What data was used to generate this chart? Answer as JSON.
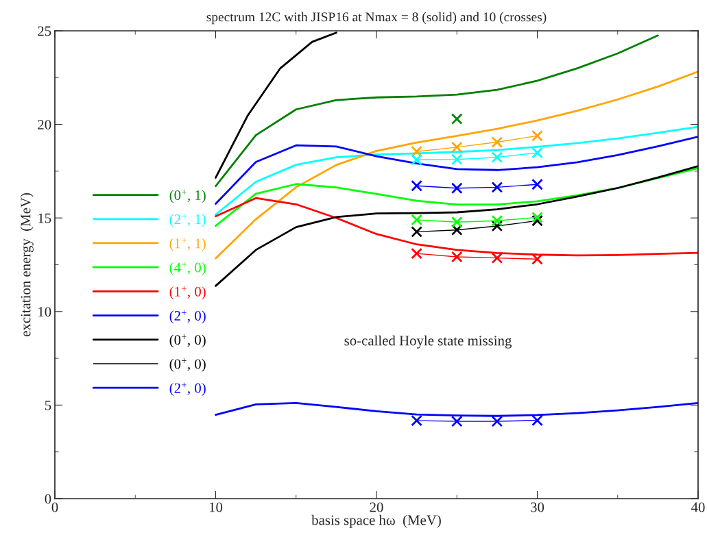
{
  "chart_data": {
    "type": "line",
    "title": "spectrum 12C with JISP16 at Nmax = 8 (solid) and 10 (crosses)",
    "xlabel": "basis space hω  (MeV)",
    "ylabel": "excitation energy  (MeV)",
    "xlim": [
      0,
      40
    ],
    "ylim": [
      0,
      25
    ],
    "xticks": [
      0,
      10,
      20,
      30,
      40
    ],
    "yticks": [
      0,
      5,
      10,
      15,
      20,
      25
    ],
    "grid": false,
    "legend": "left",
    "annotations": [
      "so-called Hoyle state missing"
    ],
    "series": [
      {
        "name": "(0$^{+}$, 1)",
        "color": "#008000",
        "x": [
          10,
          12.5,
          15,
          17.5,
          20,
          22.5,
          25,
          27.5,
          30,
          32.5,
          35,
          37.5
        ],
        "values": [
          16.7,
          19.42,
          20.8,
          21.3,
          21.44,
          21.49,
          21.59,
          21.85,
          22.33,
          23.0,
          23.79,
          24.75
        ]
      },
      {
        "name": "(2$^{+}$, 1)",
        "color": "#00ffff",
        "x": [
          10,
          12.5,
          15,
          17.5,
          20,
          22.5,
          25,
          27.5,
          30,
          32.5,
          35,
          37.5,
          40
        ],
        "values": [
          15.18,
          16.93,
          17.84,
          18.24,
          18.39,
          18.45,
          18.53,
          18.63,
          18.8,
          19.0,
          19.25,
          19.55,
          19.87
        ]
      },
      {
        "name": "(1$^{+}$, 1)",
        "color": "#ffa500",
        "x": [
          10,
          12.5,
          15,
          17.5,
          20,
          22.5,
          25,
          27.5,
          30,
          32.5,
          35,
          37.5,
          40
        ],
        "values": [
          12.84,
          14.93,
          16.64,
          17.83,
          18.58,
          19.03,
          19.39,
          19.76,
          20.21,
          20.73,
          21.33,
          22.02,
          22.82
        ]
      },
      {
        "name": "(4$^{+}$, 0)",
        "color": "#00ff00",
        "x": [
          10,
          12.5,
          15,
          17.5,
          20,
          22.5,
          25,
          27.5,
          30,
          32.5,
          35,
          37.5,
          40
        ],
        "values": [
          14.58,
          16.29,
          16.81,
          16.63,
          16.28,
          15.92,
          15.72,
          15.72,
          15.89,
          16.21,
          16.6,
          17.13,
          17.66
        ]
      },
      {
        "name": "(1$^{+}$, 0)",
        "color": "#ff0000",
        "x": [
          10,
          12.5,
          15,
          17.5,
          20,
          22.5,
          25,
          27.5,
          30,
          32.5,
          35,
          37.5,
          40
        ],
        "values": [
          15.09,
          16.06,
          15.73,
          15.0,
          14.14,
          13.59,
          13.29,
          13.13,
          13.04,
          13.0,
          13.02,
          13.08,
          13.14
        ]
      },
      {
        "name": "(2$^{+}$, 0)",
        "color": "#0000ff",
        "x": [
          10,
          12.5,
          15,
          17.5,
          20,
          22.5,
          25,
          27.5,
          30,
          32.5,
          35,
          37.5,
          40
        ],
        "values": [
          15.76,
          17.99,
          18.88,
          18.82,
          18.3,
          17.91,
          17.61,
          17.56,
          17.71,
          17.98,
          18.36,
          18.83,
          19.34
        ]
      },
      {
        "name": "(0$^{+}$, 0)",
        "color": "#000000",
        "x": [
          10,
          12.5,
          15,
          17.5,
          20,
          22.5,
          25,
          27.5,
          30,
          32.5,
          35,
          37.5,
          40
        ],
        "values": [
          11.37,
          13.29,
          14.51,
          15.05,
          15.24,
          15.26,
          15.3,
          15.46,
          15.73,
          16.15,
          16.6,
          17.16,
          17.77
        ]
      },
      {
        "name": "(0$^{+}$, 0)",
        "color": "#000000",
        "marker": "cross",
        "x": [
          22.5,
          25,
          27.5,
          30
        ],
        "values": [
          14.26,
          14.36,
          14.57,
          14.85
        ]
      },
      {
        "name": "(2$^{+}$, 0)",
        "color": "#0000ff",
        "x": [
          10,
          12.5,
          15,
          17.5,
          20,
          22.5,
          25,
          27.5,
          30,
          32.5,
          35,
          37.5,
          40
        ],
        "values": [
          4.48,
          5.04,
          5.11,
          4.9,
          4.67,
          4.5,
          4.44,
          4.42,
          4.47,
          4.57,
          4.72,
          4.9,
          5.11
        ]
      },
      {
        "color": "#000000",
        "x": [
          10,
          12,
          14,
          16,
          17.5
        ],
        "values": [
          17.15,
          20.48,
          22.98,
          24.41,
          24.9
        ]
      },
      {
        "color": "#008000",
        "marker": "cross",
        "x": [
          25
        ],
        "values": [
          20.29
        ]
      },
      {
        "color": "#ffa500",
        "marker": "cross",
        "x": [
          22.5,
          25,
          27.5,
          30
        ],
        "values": [
          18.55,
          18.78,
          19.05,
          19.39
        ]
      },
      {
        "color": "#00ffff",
        "marker": "cross",
        "x": [
          22.5,
          25,
          27.5,
          30
        ],
        "values": [
          18.11,
          18.13,
          18.24,
          18.48
        ]
      },
      {
        "color": "#0000ff",
        "marker": "cross",
        "x": [
          22.5,
          25,
          27.5,
          30
        ],
        "values": [
          16.72,
          16.59,
          16.64,
          16.79
        ]
      },
      {
        "color": "#00ff00",
        "marker": "cross",
        "x": [
          22.5,
          25,
          27.5,
          30
        ],
        "values": [
          14.9,
          14.78,
          14.85,
          15.03
        ]
      },
      {
        "color": "#ff0000",
        "marker": "cross",
        "x": [
          22.5,
          25,
          27.5,
          30
        ],
        "values": [
          13.1,
          12.92,
          12.86,
          12.8
        ]
      },
      {
        "color": "#0000ff",
        "marker": "cross",
        "x": [
          22.5,
          25,
          27.5,
          30
        ],
        "values": [
          4.17,
          4.13,
          4.13,
          4.18
        ]
      }
    ]
  }
}
